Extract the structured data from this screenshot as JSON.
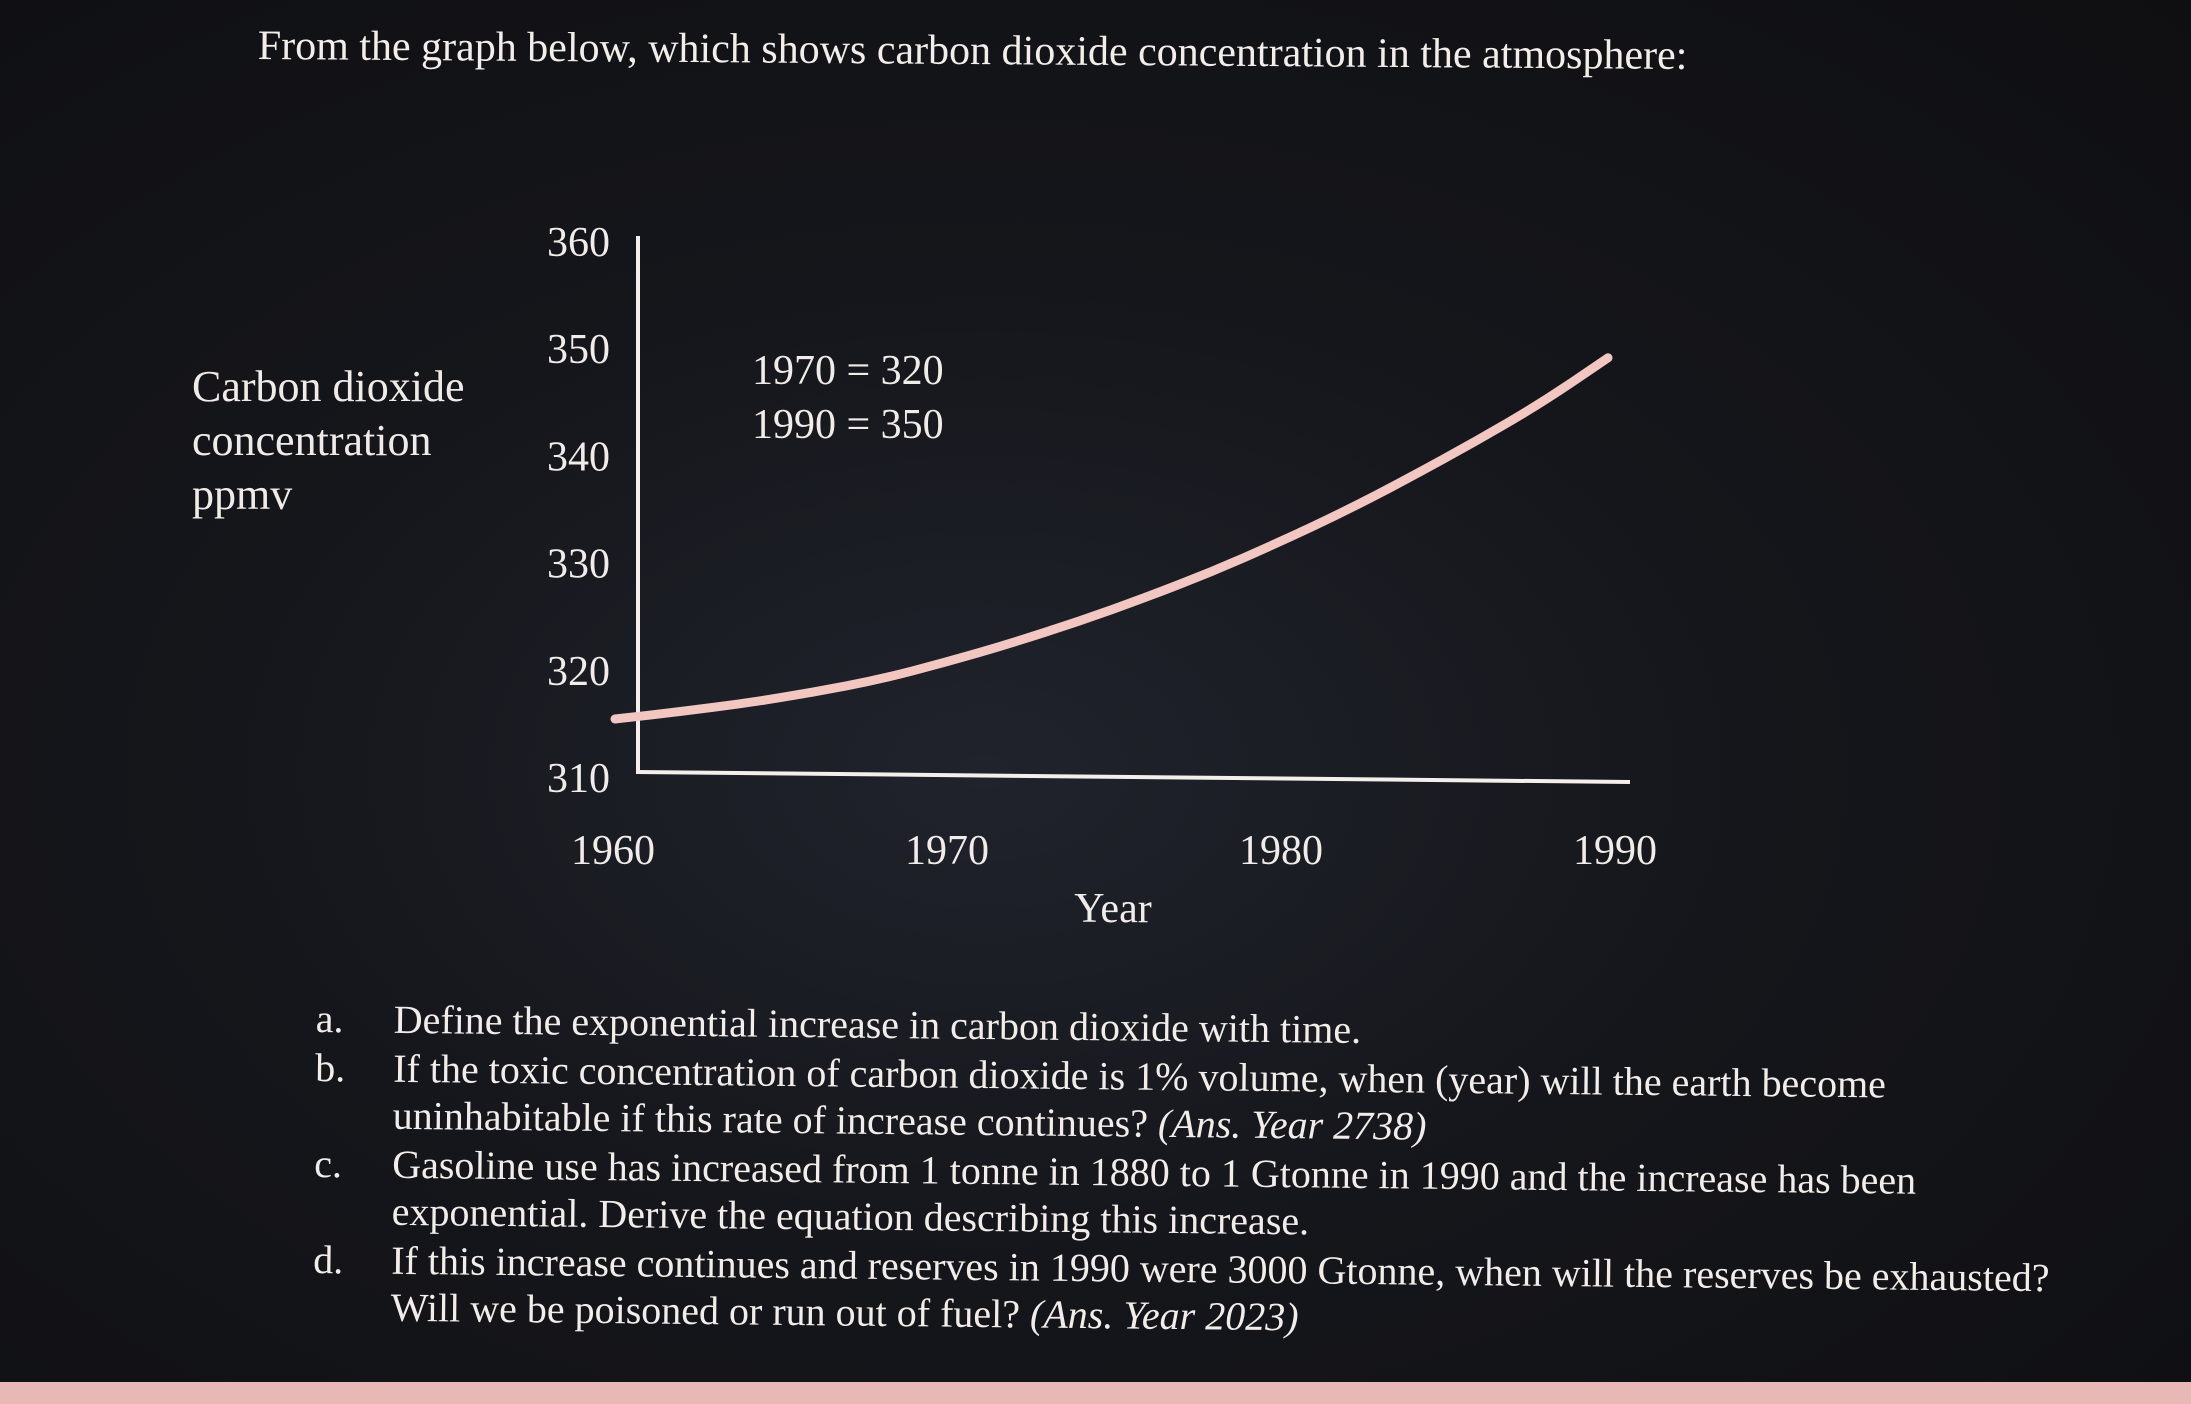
{
  "intro": "From the graph below, which shows carbon dioxide concentration in the atmosphere:",
  "ylabel_lines": [
    "Carbon dioxide",
    "concentration",
    "ppmv"
  ],
  "colors": {
    "curve": "#f2c6c1",
    "axes": "#f4efea",
    "text": "#f1ece8",
    "background": "#15161b"
  },
  "chart_data": {
    "type": "line",
    "xlabel": "Year",
    "ylabel": "Carbon dioxide concentration ppmv",
    "xlim": [
      1960,
      1990
    ],
    "ylim": [
      310,
      360
    ],
    "x_ticks": [
      "1960",
      "1970",
      "1980",
      "1990"
    ],
    "y_ticks": [
      "360",
      "350",
      "340",
      "330",
      "320",
      "310"
    ],
    "annotations": [
      "1970 = 320",
      "1990 = 350"
    ],
    "grid": false,
    "series": [
      {
        "x": [
          1960,
          1962,
          1964,
          1966,
          1968,
          1970,
          1972,
          1974,
          1976,
          1978,
          1980,
          1982,
          1984,
          1986,
          1988,
          1990
        ],
        "values": [
          315.5,
          316.2,
          317.0,
          318.0,
          319.2,
          320.8,
          322.6,
          324.6,
          326.8,
          329.2,
          331.9,
          334.8,
          338.0,
          341.4,
          345.0,
          349.2
        ]
      }
    ]
  },
  "questions": [
    {
      "letter": "a.",
      "text": "Define the exponential increase in carbon dioxide with time.",
      "answer": ""
    },
    {
      "letter": "b.",
      "text": "If the toxic concentration of carbon dioxide is 1% volume, when (year) will the earth become uninhabitable if this rate of increase continues?",
      "answer": "(Ans. Year 2738)"
    },
    {
      "letter": "c.",
      "text": "Gasoline use has increased from 1 tonne in 1880 to 1 Gtonne in 1990 and the increase has been exponential. Derive the equation describing this increase.",
      "answer": ""
    },
    {
      "letter": "d.",
      "text": "If this increase continues and reserves in 1990 were 3000 Gtonne, when will the reserves be exhausted? Will we be poisoned or run out of fuel?",
      "answer": "(Ans. Year 2023)"
    }
  ]
}
